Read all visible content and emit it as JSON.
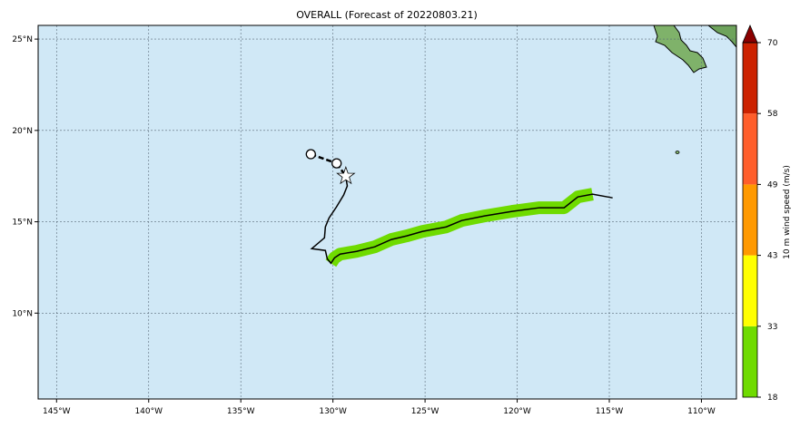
{
  "title": "OVERALL (Forecast of 20220803.21)",
  "map": {
    "lon_range": [
      -146,
      -108.1
    ],
    "lat_range": [
      5.3,
      25.75
    ],
    "ocean_color": "#d0e8f6",
    "lon_ticks": [
      {
        "v": -145,
        "label": "145°W"
      },
      {
        "v": -140,
        "label": "140°W"
      },
      {
        "v": -135,
        "label": "135°W"
      },
      {
        "v": -130,
        "label": "130°W"
      },
      {
        "v": -125,
        "label": "125°W"
      },
      {
        "v": -120,
        "label": "120°W"
      },
      {
        "v": -115,
        "label": "115°W"
      },
      {
        "v": -110,
        "label": "110°W"
      }
    ],
    "lat_ticks": [
      {
        "v": 25,
        "label": "25°N"
      },
      {
        "v": 20,
        "label": "20°N"
      },
      {
        "v": 15,
        "label": "15°N"
      },
      {
        "v": 10,
        "label": "10°N"
      }
    ],
    "past_positions": [
      [
        -131.2,
        18.7
      ],
      [
        -129.8,
        18.2
      ]
    ],
    "current_position": [
      -129.3,
      17.5
    ],
    "forecast_track": [
      [
        -129.32,
        17.55
      ],
      [
        -129.22,
        16.96
      ],
      [
        -129.42,
        16.46
      ],
      [
        -129.81,
        15.81
      ],
      [
        -130.21,
        15.21
      ],
      [
        -130.41,
        14.72
      ],
      [
        -130.46,
        14.12
      ],
      [
        -131.15,
        13.53
      ],
      [
        -130.41,
        13.43
      ],
      [
        -130.31,
        12.98
      ],
      [
        -130.11,
        12.73
      ],
      [
        -129.91,
        13.03
      ],
      [
        -129.61,
        13.23
      ],
      [
        -128.72,
        13.38
      ],
      [
        -127.73,
        13.63
      ],
      [
        -126.83,
        14.03
      ],
      [
        -125.99,
        14.23
      ],
      [
        -125.15,
        14.47
      ],
      [
        -123.85,
        14.72
      ],
      [
        -123.01,
        15.07
      ],
      [
        -121.77,
        15.32
      ],
      [
        -120.28,
        15.57
      ],
      [
        -118.79,
        15.77
      ],
      [
        -117.45,
        15.77
      ],
      [
        -116.71,
        16.36
      ],
      [
        -115.91,
        16.51
      ],
      [
        -114.82,
        16.31
      ]
    ],
    "wind_swath": {
      "from_index": 10,
      "to_index": 25,
      "color": "#6fdb00"
    }
  },
  "colorbar": {
    "label": "10 m wind speed (m/s)",
    "bounds": [
      18,
      33,
      43,
      49,
      58,
      70
    ],
    "colors": [
      "#6fdb00",
      "#ffff00",
      "#ff9900",
      "#ff5e2b",
      "#cc2200"
    ],
    "extend_color": "#8b0000"
  }
}
